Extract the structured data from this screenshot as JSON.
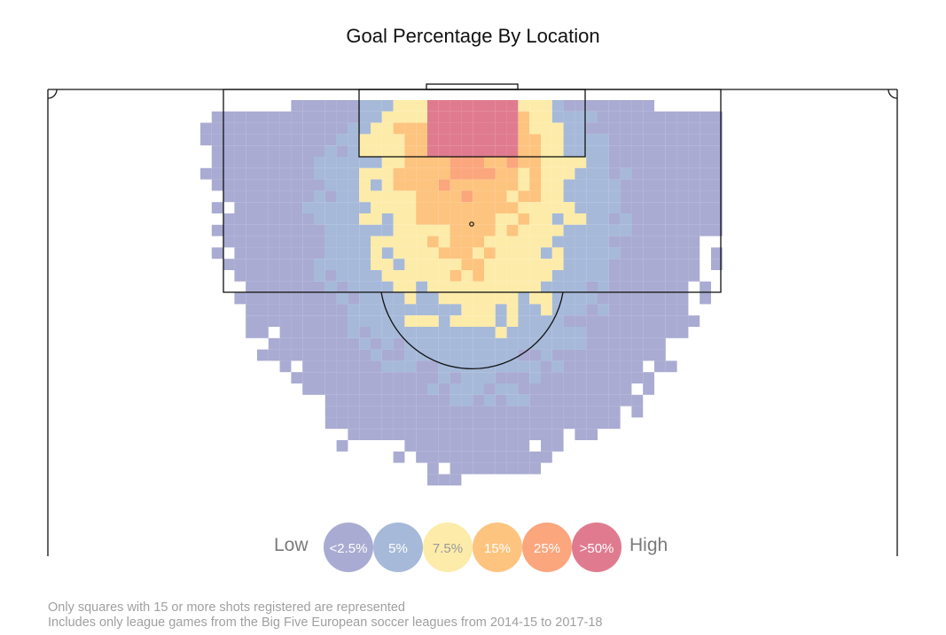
{
  "chart_data": {
    "type": "heatmap",
    "title": "Goal Percentage By Location",
    "xlabel": "",
    "ylabel": "",
    "grid": false,
    "value_unit": "goal percentage",
    "scale": {
      "low_label": "Low",
      "high_label": "High",
      "bins": [
        {
          "label": "<2.5%",
          "code": 0,
          "color": "#a9abd2"
        },
        {
          "label": "5%",
          "code": 1,
          "color": "#a6b9d9"
        },
        {
          "label": "7.5%",
          "code": 2,
          "color": "#fdeba9"
        },
        {
          "label": "15%",
          "code": 3,
          "color": "#fdc47f"
        },
        {
          "label": "25%",
          "code": 4,
          "color": "#fba67d"
        },
        {
          "label": ">50%",
          "code": 5,
          "color": "#e07b8f"
        }
      ]
    },
    "grid_rows_code": [
      ".....................##...#.................",
      "...................####################.....",
      "..........................................#.",
      "................................#..##......#"
    ],
    "cells_note": "Each square is a location bin; only bins with enough shots are shown."
  },
  "notes": {
    "line1": "Only squares with 15 or more shots registered are represented",
    "line2": "Includes only league games from the Big Five European soccer leagues from 2014-15 to 2017-18"
  }
}
